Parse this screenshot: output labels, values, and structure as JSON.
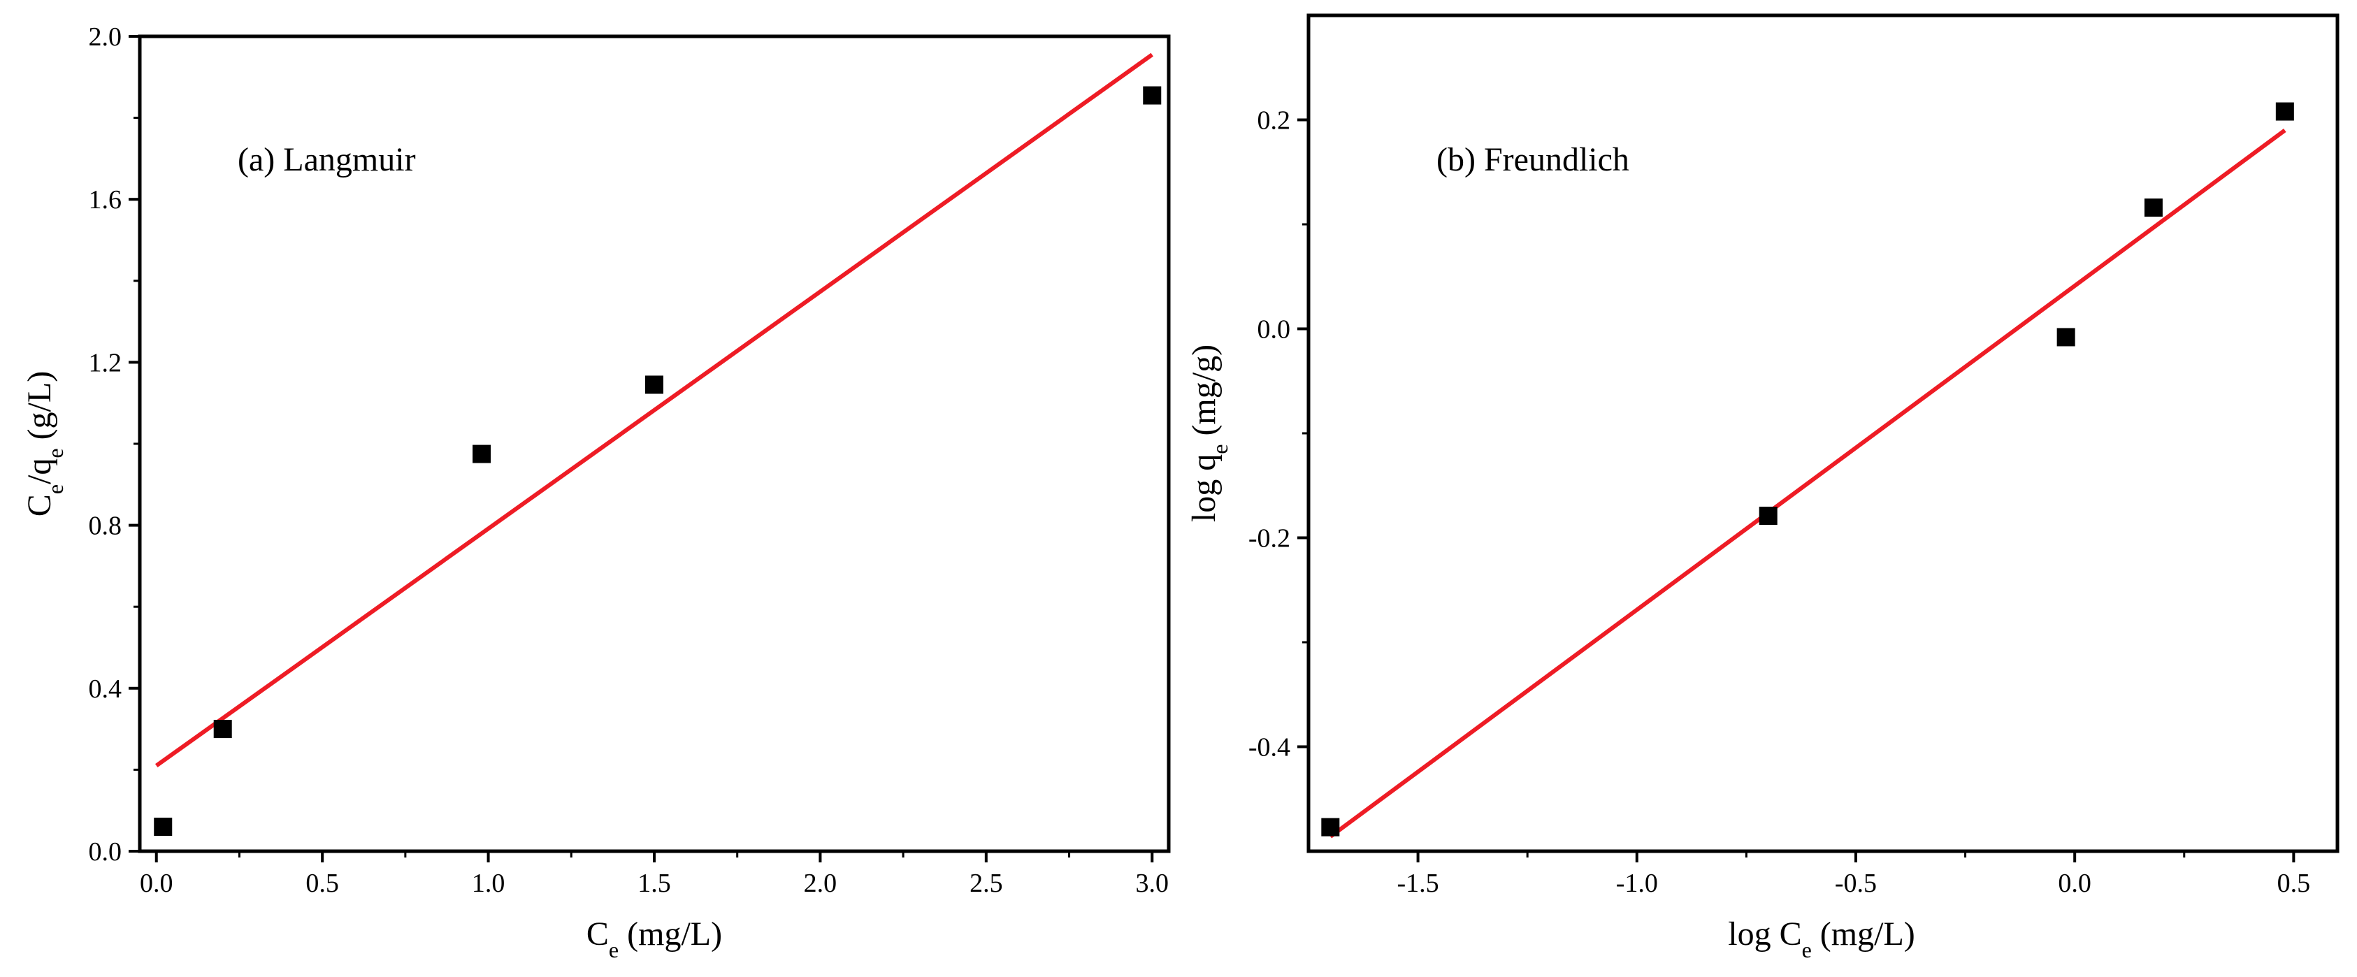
{
  "colors": {
    "fit_line": "#ee1c25",
    "marker": "#000000",
    "axis": "#000000"
  },
  "chart_data": [
    {
      "type": "scatter",
      "panel": "a",
      "annotation": "(a) Langmuir",
      "xlabel": {
        "main": "C",
        "sub": "e",
        "rest": " (mg/L)"
      },
      "ylabel": {
        "p1": "C",
        "s1": "e",
        "p2": "/q",
        "s2": "e",
        "p3": " (g/L)"
      },
      "xlim": [
        -0.05,
        3.05
      ],
      "ylim": [
        0.0,
        2.0
      ],
      "x_ticks": [
        0.0,
        0.5,
        1.0,
        1.5,
        2.0,
        2.5,
        3.0
      ],
      "x_tick_labels": [
        "0.0",
        "0.5",
        "1.0",
        "1.5",
        "2.0",
        "2.5",
        "3.0"
      ],
      "x_minor_ticks": [
        0.25,
        0.75,
        1.25,
        1.75,
        2.25,
        2.75
      ],
      "y_ticks": [
        0.0,
        0.4,
        0.8,
        1.2,
        1.6,
        2.0
      ],
      "y_tick_labels": [
        "0.0",
        "0.4",
        "0.8",
        "1.2",
        "1.6",
        "2.0"
      ],
      "y_minor_ticks": [
        0.2,
        0.6,
        1.0,
        1.4,
        1.8
      ],
      "points": {
        "x": [
          0.02,
          0.2,
          0.98,
          1.5,
          3.0
        ],
        "y": [
          0.06,
          0.3,
          0.975,
          1.145,
          1.855
        ]
      },
      "fit": {
        "x": [
          0.0,
          3.0
        ],
        "y": [
          0.21,
          1.955
        ]
      },
      "grid": false
    },
    {
      "type": "scatter",
      "panel": "b",
      "annotation": "(b) Freundlich",
      "xlabel": {
        "main": "log C",
        "sub": "e",
        "rest": " (mg/L)"
      },
      "ylabel": {
        "p1": "log q",
        "s1": "e",
        "p2": " (mg/g)",
        "s2": "",
        "p3": ""
      },
      "xlim": [
        -1.75,
        0.6
      ],
      "ylim": [
        -0.5,
        0.3
      ],
      "x_ticks": [
        -1.5,
        -1.0,
        -0.5,
        0.0,
        0.5
      ],
      "x_tick_labels": [
        "-1.5",
        "-1.0",
        "-0.5",
        "0.0",
        "0.5"
      ],
      "x_minor_ticks": [
        -1.25,
        -0.75,
        -0.25,
        0.25
      ],
      "y_ticks": [
        -0.4,
        -0.2,
        0.0,
        0.2
      ],
      "y_tick_labels": [
        "-0.4",
        "-0.2",
        "0.0",
        "0.2"
      ],
      "y_minor_ticks": [
        -0.3,
        -0.1,
        0.1
      ],
      "points": {
        "x": [
          -1.7,
          -0.7,
          -0.02,
          0.18,
          0.48
        ],
        "y": [
          -0.477,
          -0.179,
          -0.008,
          0.116,
          0.208
        ]
      },
      "fit": {
        "x": [
          -1.7,
          0.48
        ],
        "y": [
          -0.486,
          0.19
        ]
      },
      "grid": false
    }
  ]
}
